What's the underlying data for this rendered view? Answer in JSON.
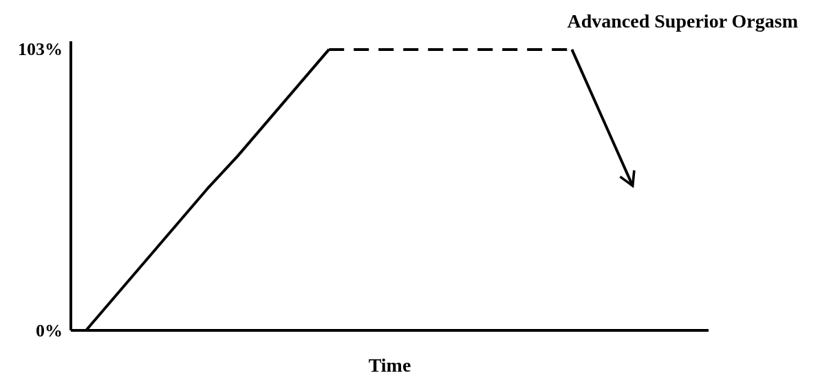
{
  "chart_data": {
    "type": "line",
    "title": "Advanced Superior Orgasm",
    "xlabel": "Time",
    "categories": [
      null,
      null,
      null,
      null,
      null,
      null,
      null,
      null,
      null,
      null,
      null,
      null,
      null,
      null,
      null,
      null,
      null,
      null,
      null,
      null,
      null
    ],
    "ylim": [
      0,
      106
    ],
    "yticks": [
      {
        "value": 0,
        "label": "0%"
      },
      {
        "value": 103,
        "label": "103%"
      }
    ],
    "series": [
      {
        "color": "#000000",
        "values": [
          0,
          13,
          26,
          39,
          52,
          64,
          77,
          90,
          103,
          null,
          null,
          null,
          null,
          null,
          null,
          null,
          null,
          null,
          null,
          null,
          null
        ],
        "line_style": "solid"
      },
      {
        "color": "#000000",
        "values": [
          null,
          null,
          null,
          null,
          null,
          null,
          null,
          null,
          103,
          103,
          103,
          103,
          103,
          103,
          103,
          103,
          103,
          null,
          null,
          null,
          null
        ],
        "line_style": "dashed"
      },
      {
        "color": "#000000",
        "values": [
          null,
          null,
          null,
          null,
          null,
          null,
          null,
          null,
          null,
          null,
          null,
          null,
          null,
          null,
          null,
          null,
          103,
          78,
          53,
          null,
          null
        ],
        "line_style": "solid"
      }
    ]
  }
}
